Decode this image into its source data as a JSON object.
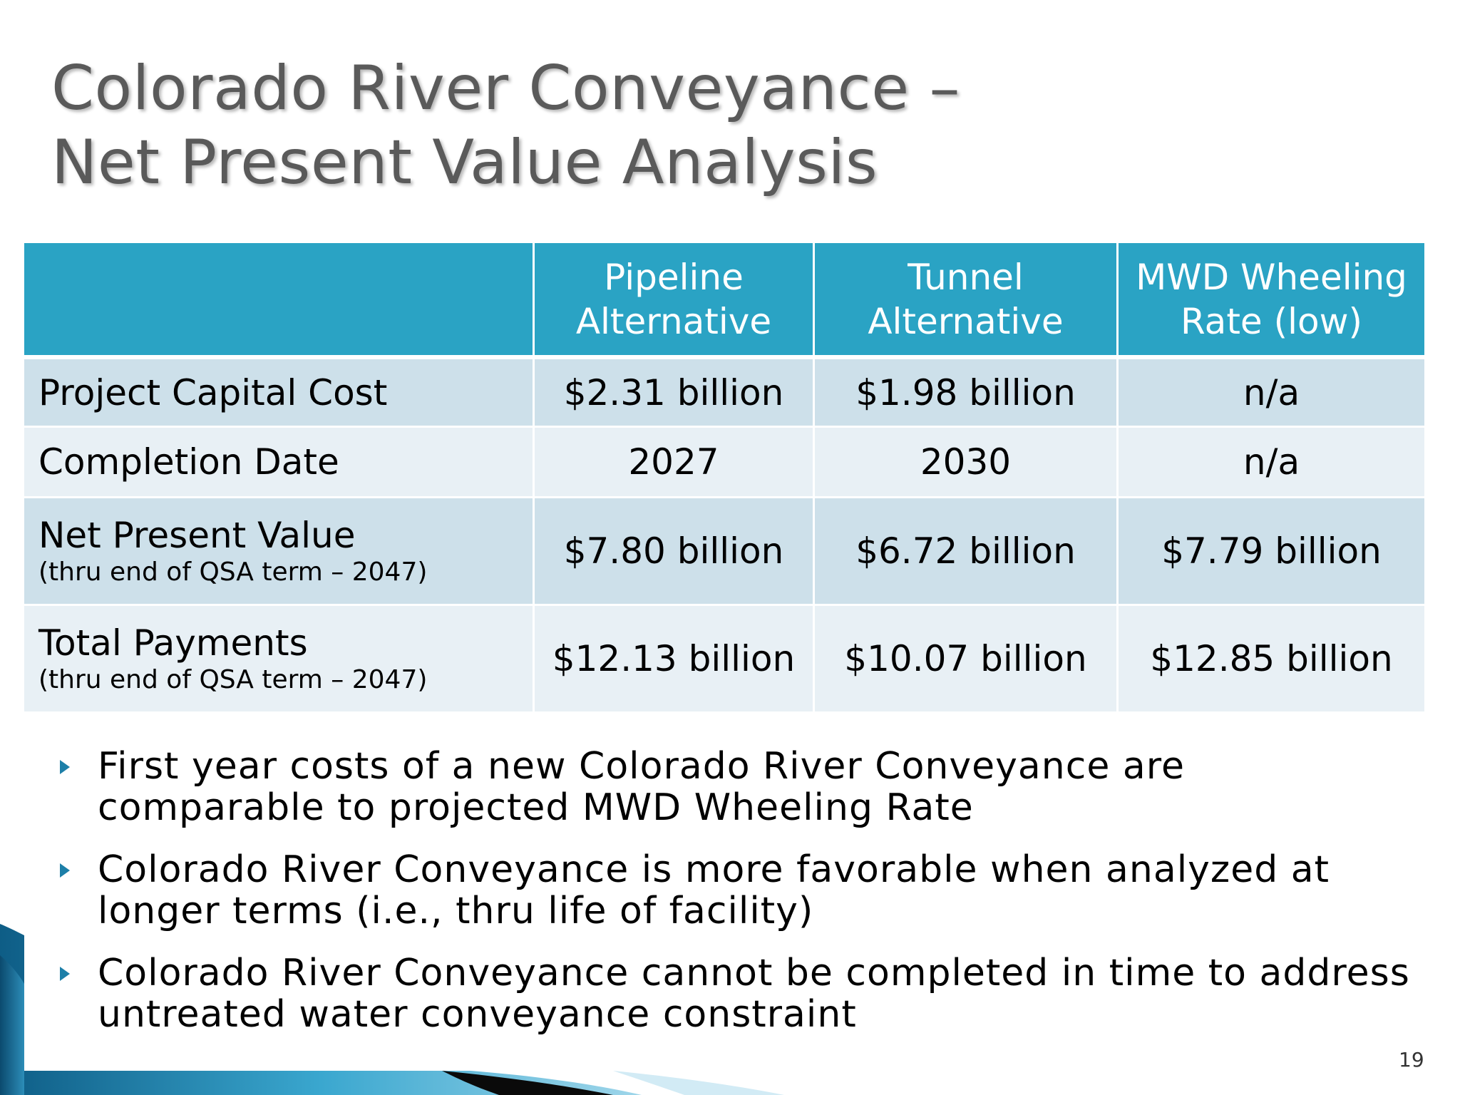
{
  "slide": {
    "title_line1": "Colorado River Conveyance –",
    "title_line2": "Net Present Value Analysis",
    "page_number": "19",
    "accent_color": "#2aa3c4"
  },
  "table": {
    "headers": [
      "",
      "Pipeline Alternative",
      "Tunnel Alternative",
      "MWD Wheeling Rate (low)"
    ],
    "rows": [
      {
        "label": "Project Capital Cost",
        "sublabel": "",
        "values": [
          "$2.31 billion",
          "$1.98 billion",
          "n/a"
        ]
      },
      {
        "label": "Completion Date",
        "sublabel": "",
        "values": [
          "2027",
          "2030",
          "n/a"
        ]
      },
      {
        "label": "Net Present Value",
        "sublabel": "(thru end of QSA term – 2047)",
        "values": [
          "$7.80 billion",
          "$6.72 billion",
          "$7.79 billion"
        ]
      },
      {
        "label": "Total Payments",
        "sublabel": "(thru end of QSA term – 2047)",
        "values": [
          "$12.13 billion",
          "$10.07 billion",
          "$12.85 billion"
        ]
      }
    ]
  },
  "bullets": [
    "First year costs of a new Colorado River Conveyance are comparable to projected MWD Wheeling Rate",
    "Colorado River Conveyance is more favorable when analyzed at longer terms (i.e., thru life of facility)",
    "Colorado River Conveyance cannot be completed in time to address untreated water conveyance constraint"
  ],
  "icons": {
    "bullet": "triangle-bullet-icon"
  }
}
